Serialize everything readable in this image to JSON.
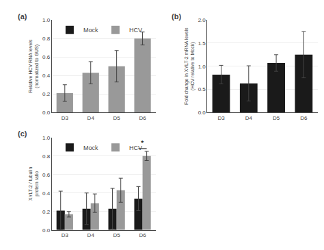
{
  "chart_data": [
    {
      "type": "bar",
      "title": "(a)",
      "categories": [
        "D3",
        "D4",
        "D5",
        "D6"
      ],
      "series": [
        {
          "name": "Mock",
          "color": "#1a1a1a",
          "values": [
            null,
            null,
            null,
            null
          ]
        },
        {
          "name": "HCV",
          "color": "#999999",
          "values": [
            0.21,
            0.43,
            0.5,
            0.8
          ],
          "errors": [
            0.09,
            0.12,
            0.17,
            0.07
          ]
        }
      ],
      "ylabel": "Relative HCV RNA levels\n(normalized to GUS)",
      "ylim": [
        0,
        1.0
      ],
      "yticks": [
        {
          "value": 0,
          "label": "0.0"
        },
        0.2,
        0.4,
        0.6,
        0.8,
        {
          "value": 1.0,
          "label": "1.0"
        }
      ],
      "grid": true,
      "legend": "upper left"
    },
    {
      "type": "bar",
      "title": "(b)",
      "categories": [
        "D3",
        "D4",
        "D5",
        "D6"
      ],
      "values": [
        0.82,
        0.63,
        1.07,
        1.25
      ],
      "errors": [
        0.2,
        0.38,
        0.18,
        0.5
      ],
      "color": "#1a1a1a",
      "ylabel": "Fold change in XYLT-2 mRNA levels\n(HCV relative to Mock)",
      "ylim": [
        0,
        2.0
      ],
      "yticks": [
        {
          "value": 0,
          "label": "0.0"
        },
        0.5,
        {
          "value": 1.0,
          "label": "1.0"
        },
        1.5,
        {
          "value": 2.0,
          "label": "2.0"
        }
      ],
      "grid": true
    },
    {
      "type": "bar",
      "title": "(c)",
      "categories": [
        "D3",
        "D4",
        "D5",
        "D6"
      ],
      "series": [
        {
          "name": "Mock",
          "color": "#1a1a1a",
          "values": [
            0.21,
            0.23,
            0.23,
            0.34
          ],
          "errors": [
            0.21,
            0.17,
            0.22,
            0.13
          ]
        },
        {
          "name": "HCV",
          "color": "#999999",
          "values": [
            0.17,
            0.29,
            0.43,
            0.8
          ],
          "errors": [
            0.03,
            0.1,
            0.13,
            0.05
          ]
        }
      ],
      "annotations": [
        {
          "text": "*",
          "x": "D6",
          "y": 0.88
        }
      ],
      "ylabel": "XYLT-2 / tubulin\nprotein ratio",
      "ylim": [
        0,
        1.0
      ],
      "yticks": [
        {
          "value": 0,
          "label": "0.0"
        },
        0.2,
        0.4,
        0.6,
        0.8,
        {
          "value": 1.0,
          "label": "1.0"
        }
      ],
      "grid": true,
      "legend": "upper left"
    }
  ]
}
